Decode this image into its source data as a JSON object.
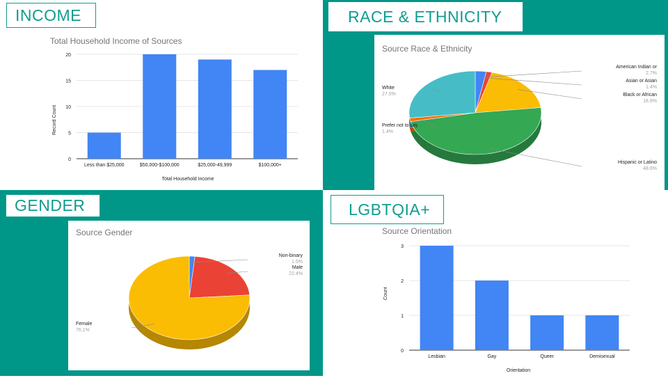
{
  "sections": {
    "income": "INCOME",
    "race": "RACE & ETHNICITY",
    "gender": "GENDER",
    "lgbtqia": "LGBTQIA+"
  },
  "colors": {
    "teal": "#009688",
    "blue": "#4285f4",
    "red": "#ea4335",
    "yellow": "#fbbc04",
    "green": "#34a853",
    "orange": "#ff6d01",
    "cyan": "#46bdc6"
  },
  "chart_data": [
    {
      "id": "income",
      "type": "bar",
      "title": "Total Household Income of Sources",
      "xlabel": "Total Household Income",
      "ylabel": "Record Count",
      "categories": [
        "Less than $25,000",
        "$50,000-$100,000",
        "$25,000-49,999",
        "$100,000+"
      ],
      "values": [
        5,
        20,
        19,
        17
      ],
      "ylim": [
        0,
        20
      ],
      "yticks": [
        "0",
        "5",
        "10",
        "15",
        "20"
      ],
      "grid": true
    },
    {
      "id": "race",
      "type": "pie",
      "title": "Source Race & Ethnicity",
      "slices": [
        {
          "label": "American Indian or",
          "value": 2.7,
          "pct": "2.7%",
          "color": "#4285f4"
        },
        {
          "label": "Asian or Asian",
          "value": 1.4,
          "pct": "1.4%",
          "color": "#ea4335"
        },
        {
          "label": "Black or African",
          "value": 18.9,
          "pct": "18.9%",
          "color": "#fbbc04"
        },
        {
          "label": "Hispanic or Latino",
          "value": 48.6,
          "pct": "48.6%",
          "color": "#34a853"
        },
        {
          "label": "Prefer not to say",
          "value": 1.4,
          "pct": "1.4%",
          "color": "#ff6d01"
        },
        {
          "label": "White",
          "value": 27.0,
          "pct": "27.0%",
          "color": "#46bdc6"
        }
      ]
    },
    {
      "id": "gender",
      "type": "pie",
      "title": "Source Gender",
      "slices": [
        {
          "label": "Non-binary",
          "value": 1.5,
          "pct": "1.5%",
          "color": "#4285f4"
        },
        {
          "label": "Male",
          "value": 22.4,
          "pct": "22.4%",
          "color": "#ea4335"
        },
        {
          "label": "Female",
          "value": 76.1,
          "pct": "76.1%",
          "color": "#fbbc04"
        }
      ]
    },
    {
      "id": "orientation",
      "type": "bar",
      "title": "Source Orientation",
      "xlabel": "Orientation",
      "ylabel": "Count",
      "categories": [
        "Lesbian",
        "Gay",
        "Queer",
        "Demisexual"
      ],
      "values": [
        3,
        2,
        1,
        1
      ],
      "ylim": [
        0,
        3
      ],
      "yticks": [
        "0",
        "1",
        "2",
        "3"
      ],
      "grid": true
    }
  ]
}
